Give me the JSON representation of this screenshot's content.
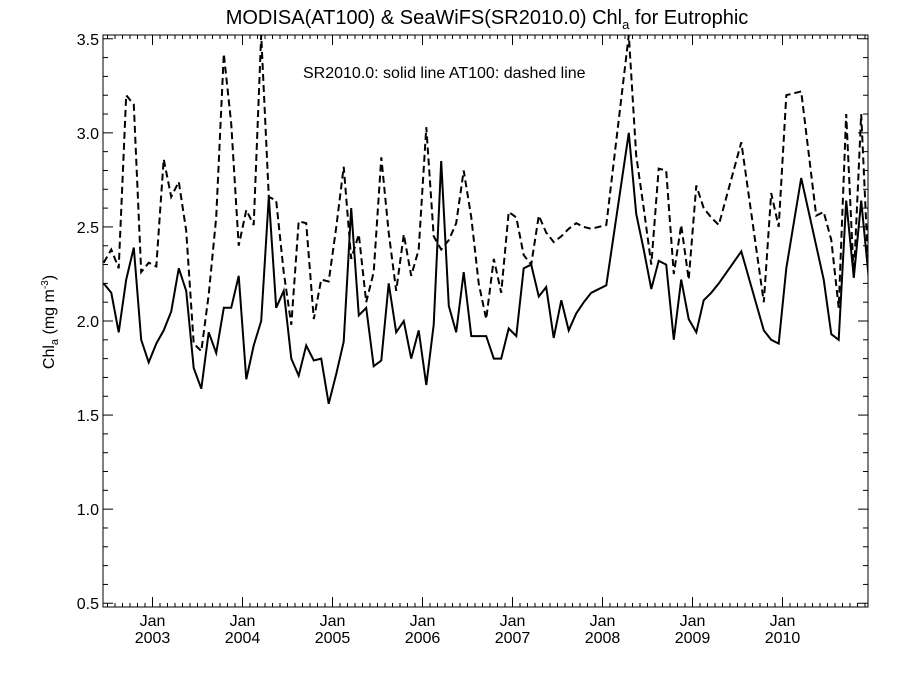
{
  "chart_data": {
    "type": "line",
    "title": {
      "main": "MODISA(AT100) & SeaWiFS(SR2010.0)  Chl",
      "sub": "a",
      "rest": " for Eutrophic"
    },
    "ylabel": {
      "pre": "Chl",
      "sub": "a",
      "mid": " (mg m",
      "sup": "-3",
      "post": ")"
    },
    "annotation": "SR2010.0: solid line   AT100: dashed line",
    "ylim": [
      0.48,
      3.52
    ],
    "y_ticks": [
      "0.5",
      "1.0",
      "1.5",
      "2.0",
      "2.5",
      "3.0",
      "3.5"
    ],
    "xlim": [
      2002.45,
      2010.95
    ],
    "x_ticks": [
      {
        "month": "Jan",
        "year": "2003",
        "x": 2003.0
      },
      {
        "month": "Jan",
        "year": "2004",
        "x": 2004.0
      },
      {
        "month": "Jan",
        "year": "2005",
        "x": 2005.0
      },
      {
        "month": "Jan",
        "year": "2006",
        "x": 2006.0
      },
      {
        "month": "Jan",
        "year": "2007",
        "x": 2007.0
      },
      {
        "month": "Jan",
        "year": "2008",
        "x": 2008.0
      },
      {
        "month": "Jan",
        "year": "2009",
        "x": 2009.0
      },
      {
        "month": "Jan",
        "year": "2010",
        "x": 2010.0
      }
    ],
    "grid": false,
    "series": [
      {
        "name": "SR2010.0",
        "style": "solid",
        "color": "#000000",
        "x": [
          2002.458,
          2002.542,
          2002.625,
          2002.708,
          2002.792,
          2002.875,
          2002.958,
          2003.042,
          2003.125,
          2003.208,
          2003.292,
          2003.375,
          2003.458,
          2003.542,
          2003.625,
          2003.708,
          2003.792,
          2003.875,
          2003.958,
          2004.042,
          2004.125,
          2004.208,
          2004.292,
          2004.375,
          2004.458,
          2004.542,
          2004.625,
          2004.708,
          2004.792,
          2004.875,
          2004.958,
          2005.042,
          2005.125,
          2005.208,
          2005.292,
          2005.375,
          2005.458,
          2005.542,
          2005.625,
          2005.708,
          2005.792,
          2005.875,
          2005.958,
          2006.042,
          2006.125,
          2006.208,
          2006.292,
          2006.375,
          2006.458,
          2006.542,
          2006.625,
          2006.708,
          2006.792,
          2006.875,
          2006.958,
          2007.042,
          2007.125,
          2007.208,
          2007.292,
          2007.375,
          2007.458,
          2007.542,
          2007.625,
          2007.708,
          2007.792,
          2007.875,
          2008.042,
          2008.292,
          2008.375,
          2008.458,
          2008.542,
          2008.625,
          2008.708,
          2008.792,
          2008.875,
          2008.958,
          2009.042,
          2009.125,
          2009.208,
          2009.292,
          2009.542,
          2009.792,
          2009.875,
          2009.958,
          2010.042,
          2010.208,
          2010.375,
          2010.458,
          2010.542,
          2010.625,
          2010.708,
          2010.792,
          2010.875,
          2010.958
        ],
        "y": [
          2.2,
          2.15,
          1.94,
          2.22,
          2.39,
          1.9,
          1.78,
          1.88,
          1.95,
          2.05,
          2.28,
          2.16,
          1.75,
          1.64,
          1.94,
          1.83,
          2.07,
          2.07,
          2.24,
          1.69,
          1.87,
          2.0,
          2.66,
          2.07,
          2.16,
          1.8,
          1.71,
          1.87,
          1.79,
          1.8,
          1.56,
          1.72,
          1.89,
          2.6,
          2.03,
          2.07,
          1.76,
          1.79,
          2.2,
          1.94,
          2.0,
          1.8,
          1.95,
          1.66,
          1.98,
          2.85,
          2.08,
          1.94,
          2.26,
          1.92,
          1.92,
          1.92,
          1.8,
          1.8,
          1.96,
          1.92,
          2.28,
          2.3,
          2.13,
          2.18,
          1.91,
          2.11,
          1.95,
          2.04,
          2.1,
          2.15,
          2.19,
          3.0,
          2.57,
          2.38,
          2.17,
          2.32,
          2.3,
          1.9,
          2.22,
          2.01,
          1.94,
          2.11,
          2.15,
          2.2,
          2.37,
          1.95,
          1.9,
          1.88,
          2.28,
          2.76,
          2.4,
          2.22,
          1.93,
          1.9,
          2.64,
          2.23,
          2.64,
          2.23
        ]
      },
      {
        "name": "AT100",
        "style": "dashed",
        "color": "#000000",
        "x": [
          2002.458,
          2002.542,
          2002.625,
          2002.708,
          2002.792,
          2002.875,
          2002.958,
          2003.042,
          2003.125,
          2003.208,
          2003.292,
          2003.375,
          2003.458,
          2003.542,
          2003.625,
          2003.708,
          2003.792,
          2003.875,
          2003.958,
          2004.042,
          2004.125,
          2004.208,
          2004.292,
          2004.375,
          2004.458,
          2004.542,
          2004.625,
          2004.708,
          2004.792,
          2004.875,
          2004.958,
          2005.042,
          2005.125,
          2005.208,
          2005.292,
          2005.375,
          2005.458,
          2005.542,
          2005.625,
          2005.708,
          2005.792,
          2005.875,
          2005.958,
          2006.042,
          2006.125,
          2006.208,
          2006.292,
          2006.375,
          2006.458,
          2006.542,
          2006.625,
          2006.708,
          2006.792,
          2006.875,
          2006.958,
          2007.042,
          2007.125,
          2007.208,
          2007.292,
          2007.375,
          2007.458,
          2007.542,
          2007.625,
          2007.708,
          2007.792,
          2007.875,
          2008.042,
          2008.292,
          2008.375,
          2008.458,
          2008.542,
          2008.625,
          2008.708,
          2008.792,
          2008.875,
          2008.958,
          2009.042,
          2009.125,
          2009.208,
          2009.292,
          2009.542,
          2009.792,
          2009.875,
          2009.958,
          2010.042,
          2010.208,
          2010.375,
          2010.458,
          2010.542,
          2010.625,
          2010.708,
          2010.792,
          2010.875,
          2010.958
        ],
        "y": [
          2.31,
          2.38,
          2.28,
          3.2,
          3.15,
          2.26,
          2.31,
          2.29,
          2.86,
          2.66,
          2.74,
          2.48,
          1.88,
          1.84,
          2.14,
          2.55,
          3.42,
          3.05,
          2.4,
          2.59,
          2.51,
          3.52,
          2.66,
          2.64,
          2.26,
          1.98,
          2.53,
          2.52,
          2.01,
          2.22,
          2.21,
          2.5,
          2.82,
          2.33,
          2.46,
          2.1,
          2.26,
          2.87,
          2.47,
          2.16,
          2.46,
          2.24,
          2.38,
          3.03,
          2.45,
          2.38,
          2.43,
          2.52,
          2.8,
          2.55,
          2.2,
          2.01,
          2.33,
          2.15,
          2.58,
          2.55,
          2.35,
          2.3,
          2.56,
          2.47,
          2.42,
          2.45,
          2.49,
          2.52,
          2.5,
          2.49,
          2.51,
          3.52,
          2.88,
          2.6,
          2.3,
          2.81,
          2.8,
          2.25,
          2.51,
          2.22,
          2.72,
          2.6,
          2.55,
          2.51,
          2.95,
          2.1,
          2.68,
          2.5,
          3.2,
          3.22,
          2.56,
          2.58,
          2.43,
          2.07,
          3.1,
          2.23,
          3.1,
          2.23
        ]
      }
    ]
  }
}
